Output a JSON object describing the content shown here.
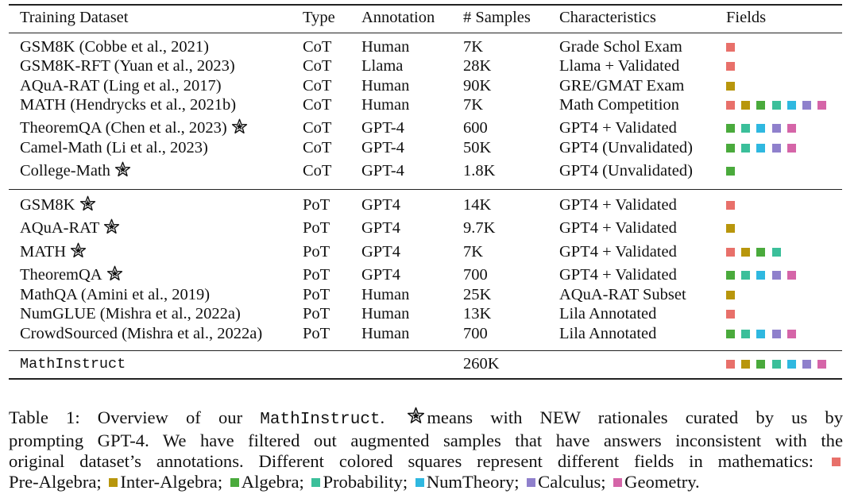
{
  "colors": {
    "Pre-Algebra": "#e8706a",
    "Inter-Algebra": "#b8960c",
    "Algebra": "#4aaa3c",
    "Probability": "#3bbf9a",
    "NumTheory": "#2fb8e0",
    "Calculus": "#8f80cc",
    "Geometry": "#d565a8"
  },
  "table": {
    "headers": [
      "Training Dataset",
      "Type",
      "Annotation",
      "# Samples",
      "Characteristics",
      "Fields"
    ],
    "group1": [
      {
        "name": "GSM8K (Cobbe et al., 2021)",
        "star": false,
        "type": "CoT",
        "annotation": "Human",
        "samples": "7K",
        "characteristics": "Grade Schol Exam",
        "fields": [
          "Pre-Algebra"
        ]
      },
      {
        "name": "GSM8K-RFT (Yuan et al., 2023)",
        "star": false,
        "type": "CoT",
        "annotation": "Llama",
        "samples": "28K",
        "characteristics": "Llama + Validated",
        "fields": [
          "Pre-Algebra"
        ]
      },
      {
        "name": "AQuA-RAT (Ling et al., 2017)",
        "star": false,
        "type": "CoT",
        "annotation": "Human",
        "samples": "90K",
        "characteristics": "GRE/GMAT Exam",
        "fields": [
          "Inter-Algebra"
        ]
      },
      {
        "name": "MATH (Hendrycks et al., 2021b)",
        "star": false,
        "type": "CoT",
        "annotation": "Human",
        "samples": "7K",
        "characteristics": "Math Competition",
        "fields": [
          "Pre-Algebra",
          "Inter-Algebra",
          "Algebra",
          "Probability",
          "NumTheory",
          "Calculus",
          "Geometry"
        ]
      },
      {
        "name": "TheoremQA (Chen et al., 2023)",
        "star": true,
        "type": "CoT",
        "annotation": "GPT-4",
        "samples": "600",
        "characteristics": "GPT4 + Validated",
        "fields": [
          "Algebra",
          "Probability",
          "NumTheory",
          "Calculus",
          "Geometry"
        ]
      },
      {
        "name": "Camel-Math (Li et al., 2023)",
        "star": false,
        "type": "CoT",
        "annotation": "GPT-4",
        "samples": "50K",
        "characteristics": "GPT4 (Unvalidated)",
        "fields": [
          "Algebra",
          "Probability",
          "NumTheory",
          "Calculus",
          "Geometry"
        ]
      },
      {
        "name": "College-Math",
        "star": true,
        "type": "CoT",
        "annotation": "GPT-4",
        "samples": "1.8K",
        "characteristics": "GPT4 (Unvalidated)",
        "fields": [
          "Algebra"
        ]
      }
    ],
    "group2": [
      {
        "name": "GSM8K",
        "star": true,
        "type": "PoT",
        "annotation": "GPT4",
        "samples": "14K",
        "characteristics": "GPT4 + Validated",
        "fields": [
          "Pre-Algebra"
        ]
      },
      {
        "name": "AQuA-RAT",
        "star": true,
        "type": "PoT",
        "annotation": "GPT4",
        "samples": "9.7K",
        "characteristics": "GPT4 + Validated",
        "fields": [
          "Inter-Algebra"
        ]
      },
      {
        "name": "MATH",
        "star": true,
        "type": "PoT",
        "annotation": "GPT4",
        "samples": "7K",
        "characteristics": "GPT4 + Validated",
        "fields": [
          "Pre-Algebra",
          "Inter-Algebra",
          "Algebra",
          "Probability"
        ]
      },
      {
        "name": "TheoremQA",
        "star": true,
        "type": "PoT",
        "annotation": "GPT4",
        "samples": "700",
        "characteristics": "GPT4 + Validated",
        "fields": [
          "Algebra",
          "Probability",
          "NumTheory",
          "Calculus",
          "Geometry"
        ]
      },
      {
        "name": "MathQA (Amini et al., 2019)",
        "star": false,
        "type": "PoT",
        "annotation": "Human",
        "samples": "25K",
        "characteristics": "AQuA-RAT Subset",
        "fields": [
          "Inter-Algebra"
        ]
      },
      {
        "name": "NumGLUE (Mishra et al., 2022a)",
        "star": false,
        "type": "PoT",
        "annotation": "Human",
        "samples": "13K",
        "characteristics": "Lila Annotated",
        "fields": [
          "Pre-Algebra"
        ]
      },
      {
        "name": "CrowdSourced (Mishra et al., 2022a)",
        "star": false,
        "type": "PoT",
        "annotation": "Human",
        "samples": "700",
        "characteristics": "Lila Annotated",
        "fields": [
          "Algebra",
          "Probability",
          "NumTheory",
          "Calculus",
          "Geometry"
        ]
      }
    ],
    "total": {
      "name": "MathInstruct",
      "samples": "260K",
      "fields": [
        "Pre-Algebra",
        "Inter-Algebra",
        "Algebra",
        "Probability",
        "NumTheory",
        "Calculus",
        "Geometry"
      ]
    }
  },
  "caption": {
    "label": "Table 1:",
    "overview": "Overview of our",
    "name": "MathInstruct",
    "star_text": "means with NEW rationales curated by us by",
    "line2": "prompting GPT-4. We have filtered out augmented samples that have answers inconsistent with the",
    "line3": "original dataset’s annotations. Different colored squares represent different fields in mathematics:",
    "legend": [
      {
        "field": "Pre-Algebra",
        "label": "Pre-Algebra;"
      },
      {
        "field": "Inter-Algebra",
        "label": "Inter-Algebra;"
      },
      {
        "field": "Algebra",
        "label": "Algebra;"
      },
      {
        "field": "Probability",
        "label": "Probability;"
      },
      {
        "field": "NumTheory",
        "label": "NumTheory;"
      },
      {
        "field": "Calculus",
        "label": "Calculus;"
      },
      {
        "field": "Geometry",
        "label": "Geometry."
      }
    ]
  }
}
